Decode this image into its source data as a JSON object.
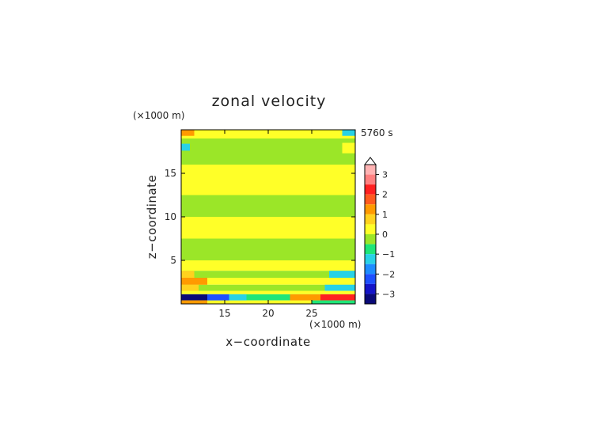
{
  "chart_data": {
    "type": "heatmap",
    "title": "zonal velocity",
    "xlabel": "x−coordinate",
    "ylabel": "z−coordinate",
    "x_unit": "(×1000 m)",
    "y_unit": "(×1000 m)",
    "time_label": "5760 s",
    "xlim": [
      10,
      30
    ],
    "ylim": [
      0,
      20
    ],
    "x_ticks": [
      15,
      20,
      25
    ],
    "y_ticks": [
      5,
      10,
      15
    ],
    "x_tick_labels": [
      "15",
      "20",
      "25"
    ],
    "y_tick_labels": [
      "5",
      "10",
      "15"
    ],
    "colorbar": {
      "tick_values": [
        3,
        2,
        1,
        0,
        -1,
        -2,
        -3
      ],
      "tick_labels": [
        "3",
        "2",
        "1",
        "0",
        "−1",
        "−2",
        "−3"
      ],
      "levels": [
        {
          "from": 3.0,
          "to": 3.5,
          "color": "#ffb3b3"
        },
        {
          "from": 2.5,
          "to": 3.0,
          "color": "#ff8080"
        },
        {
          "from": 2.0,
          "to": 2.5,
          "color": "#ff2020"
        },
        {
          "from": 1.5,
          "to": 2.0,
          "color": "#ff5a1e"
        },
        {
          "from": 1.0,
          "to": 1.5,
          "color": "#ff9a00"
        },
        {
          "from": 0.5,
          "to": 1.0,
          "color": "#ffd21e"
        },
        {
          "from": 0.0,
          "to": 0.5,
          "color": "#ffff28"
        },
        {
          "from": -0.5,
          "to": 0.0,
          "color": "#9be628"
        },
        {
          "from": -1.0,
          "to": -0.5,
          "color": "#1ee678"
        },
        {
          "from": -1.5,
          "to": -1.0,
          "color": "#28d2e6"
        },
        {
          "from": -2.0,
          "to": -1.5,
          "color": "#1e8cff"
        },
        {
          "from": -2.5,
          "to": -2.0,
          "color": "#1e50ff"
        },
        {
          "from": -3.0,
          "to": -2.5,
          "color": "#1414c8"
        },
        {
          "from": -3.5,
          "to": -3.0,
          "color": "#0a0a78"
        }
      ]
    },
    "bands": [
      {
        "z0": 19.0,
        "z1": 20.0,
        "value": 0.2
      },
      {
        "z0": 18.5,
        "z1": 19.0,
        "value": -0.2
      },
      {
        "z0": 16.0,
        "z1": 18.5,
        "value": -0.3
      },
      {
        "z0": 12.5,
        "z1": 16.0,
        "value": 0.2
      },
      {
        "z0": 10.0,
        "z1": 12.5,
        "value": -0.3
      },
      {
        "z0": 7.5,
        "z1": 10.0,
        "value": 0.2
      },
      {
        "z0": 5.0,
        "z1": 7.5,
        "value": -0.3
      },
      {
        "z0": 3.8,
        "z1": 5.0,
        "value": 0.2
      },
      {
        "z0": 3.0,
        "z1": 3.8,
        "value": -0.3
      },
      {
        "z0": 2.2,
        "z1": 3.0,
        "value": 0.3
      },
      {
        "z0": 1.5,
        "z1": 2.2,
        "value": -0.3
      },
      {
        "z0": 1.1,
        "z1": 1.5,
        "value": 0.3
      },
      {
        "z0": 0.4,
        "z1": 1.1,
        "value": -0.6
      },
      {
        "z0": 0.0,
        "z1": 0.4,
        "value": 0.3
      }
    ],
    "features": [
      {
        "x0": 10.0,
        "x1": 13.0,
        "z0": 0.4,
        "z1": 1.1,
        "value": -3.3
      },
      {
        "x0": 13.0,
        "x1": 15.5,
        "z0": 0.4,
        "z1": 1.1,
        "value": -2.2
      },
      {
        "x0": 15.5,
        "x1": 17.5,
        "z0": 0.4,
        "z1": 1.1,
        "value": -1.2
      },
      {
        "x0": 22.5,
        "x1": 26.0,
        "z0": 0.4,
        "z1": 1.1,
        "value": 1.2
      },
      {
        "x0": 26.0,
        "x1": 30.0,
        "z0": 0.4,
        "z1": 1.1,
        "value": 2.2
      },
      {
        "x0": 10.0,
        "x1": 13.0,
        "z0": 0.0,
        "z1": 0.4,
        "value": 1.2
      },
      {
        "x0": 25.0,
        "x1": 30.0,
        "z0": 0.0,
        "z1": 0.4,
        "value": -0.7
      },
      {
        "x0": 10.0,
        "x1": 13.0,
        "z0": 2.2,
        "z1": 3.0,
        "value": 1.2
      },
      {
        "x0": 10.0,
        "x1": 12.0,
        "z0": 1.5,
        "z1": 2.2,
        "value": 0.7
      },
      {
        "x0": 26.5,
        "x1": 30.0,
        "z0": 1.5,
        "z1": 2.2,
        "value": -1.2
      },
      {
        "x0": 27.0,
        "x1": 30.0,
        "z0": 3.0,
        "z1": 3.8,
        "value": -1.2
      },
      {
        "x0": 10.0,
        "x1": 11.5,
        "z0": 3.0,
        "z1": 3.8,
        "value": 0.7
      },
      {
        "x0": 10.0,
        "x1": 11.0,
        "z0": 17.6,
        "z1": 18.4,
        "value": -1.2
      },
      {
        "x0": 28.5,
        "x1": 30.0,
        "z0": 19.3,
        "z1": 20.0,
        "value": -1.2
      },
      {
        "x0": 10.0,
        "x1": 11.5,
        "z0": 19.3,
        "z1": 20.0,
        "value": 1.2
      },
      {
        "x0": 28.5,
        "x1": 30.0,
        "z0": 17.3,
        "z1": 18.5,
        "value": 0.3
      }
    ]
  }
}
